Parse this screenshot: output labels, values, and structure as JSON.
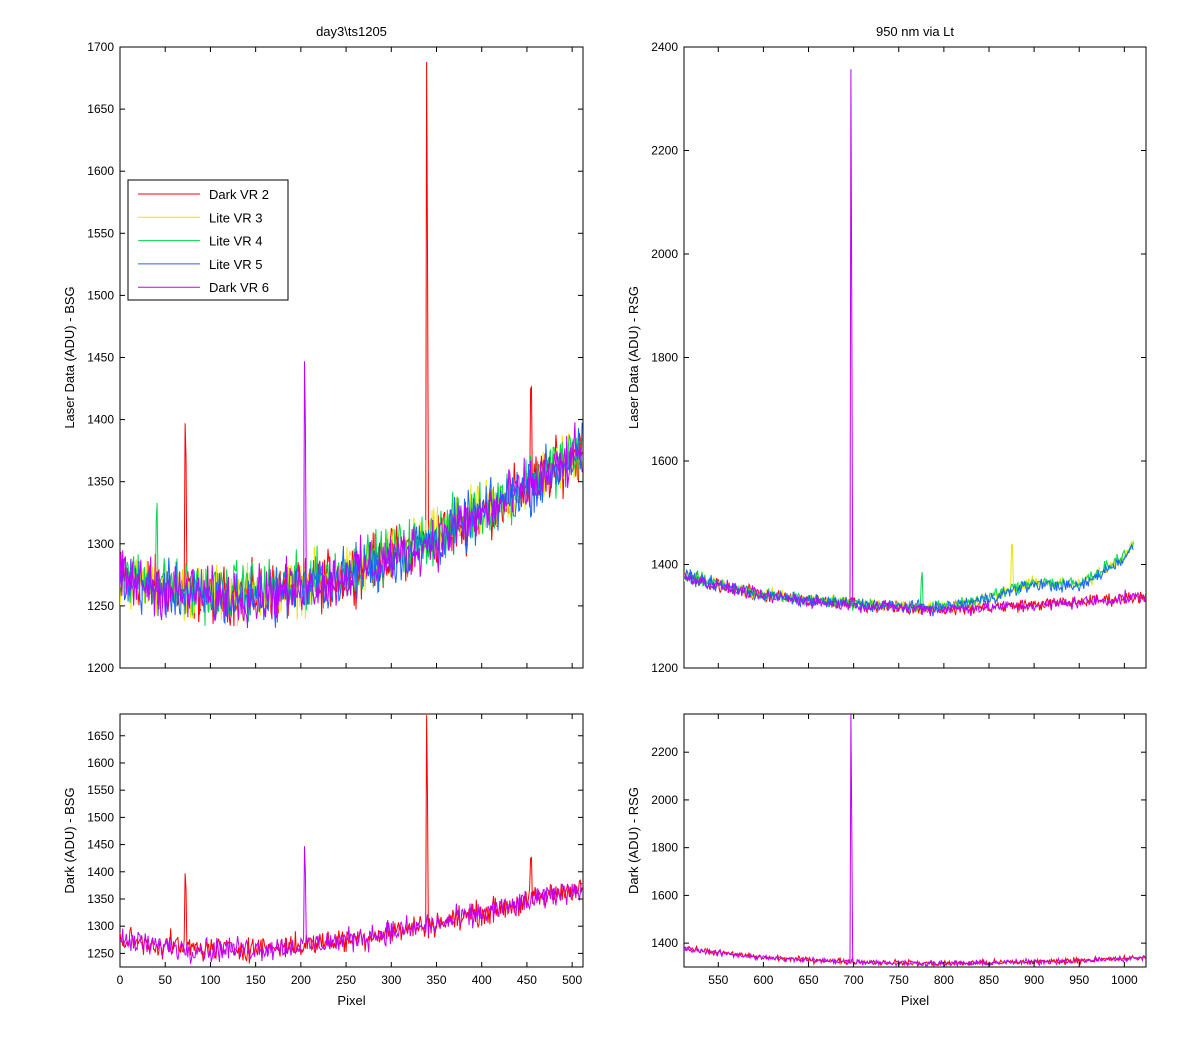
{
  "series_styles": [
    {
      "name": "Dark VR 2",
      "color": "#ff0000"
    },
    {
      "name": "Lite VR 3",
      "color": "#e6e600"
    },
    {
      "name": "Lite VR 4",
      "color": "#00d94c"
    },
    {
      "name": "Lite VR 5",
      "color": "#1a66ff"
    },
    {
      "name": "Dark VR 6",
      "color": "#c000ff"
    }
  ],
  "chart_data": [
    {
      "id": "top-left",
      "type": "line",
      "title": "day3\\ts1205",
      "xlabel": "",
      "ylabel": "Laser Data (ADU) - BSG",
      "xlim": [
        0,
        512
      ],
      "ylim": [
        1200,
        1700
      ],
      "yticks": [
        1200,
        1250,
        1300,
        1350,
        1400,
        1450,
        1500,
        1550,
        1600,
        1650,
        1700
      ],
      "xticks": [
        0,
        50,
        100,
        150,
        200,
        250,
        300,
        350,
        400,
        450,
        500
      ],
      "show_xtick_labels": false,
      "legend": {
        "placement": "upper-left",
        "entries": [
          "Dark VR 2",
          "Lite VR 3",
          "Lite VR 4",
          "Lite VR 5",
          "Dark VR 6"
        ]
      },
      "series": [
        {
          "name": "Dark VR 2",
          "x": [
            0,
            50,
            100,
            150,
            200,
            250,
            300,
            350,
            400,
            450,
            511
          ],
          "values": [
            1275,
            1265,
            1258,
            1260,
            1265,
            1275,
            1290,
            1305,
            1325,
            1345,
            1375
          ],
          "spikes": [
            [
              72,
              1397
            ],
            [
              339,
              1688
            ],
            [
              454,
              1425
            ]
          ]
        },
        {
          "name": "Lite VR 3",
          "x": [
            0,
            50,
            100,
            150,
            200,
            250,
            300,
            350,
            400,
            450,
            511
          ],
          "values": [
            1272,
            1264,
            1258,
            1262,
            1266,
            1277,
            1290,
            1305,
            1325,
            1347,
            1375
          ],
          "spikes": []
        },
        {
          "name": "Lite VR 4",
          "x": [
            0,
            50,
            100,
            150,
            200,
            250,
            300,
            350,
            400,
            450,
            511
          ],
          "values": [
            1275,
            1266,
            1261,
            1264,
            1268,
            1279,
            1292,
            1307,
            1328,
            1350,
            1377
          ],
          "spikes": [
            [
              40,
              1318
            ]
          ]
        },
        {
          "name": "Lite VR 5",
          "x": [
            0,
            50,
            100,
            150,
            200,
            250,
            300,
            350,
            400,
            450,
            511
          ],
          "values": [
            1270,
            1262,
            1255,
            1258,
            1263,
            1274,
            1288,
            1303,
            1323,
            1345,
            1373
          ],
          "spikes": []
        },
        {
          "name": "Dark VR 6",
          "x": [
            0,
            50,
            100,
            150,
            200,
            250,
            300,
            350,
            400,
            450,
            511
          ],
          "values": [
            1272,
            1263,
            1257,
            1259,
            1264,
            1275,
            1289,
            1303,
            1324,
            1344,
            1373
          ],
          "spikes": [
            [
              204,
              1447
            ]
          ]
        }
      ]
    },
    {
      "id": "top-right",
      "type": "line",
      "title": "950 nm via Lt",
      "xlabel": "",
      "ylabel": "Laser Data (ADU) - RSG",
      "xlim": [
        512,
        1024
      ],
      "ylim": [
        1200,
        2400
      ],
      "yticks": [
        1200,
        1400,
        1600,
        1800,
        2000,
        2200,
        2400
      ],
      "xticks": [
        550,
        600,
        650,
        700,
        750,
        800,
        850,
        900,
        950,
        1000
      ],
      "show_xtick_labels": false,
      "legend": null,
      "series": [
        {
          "name": "Dark VR 2",
          "x": [
            512,
            550,
            600,
            650,
            700,
            750,
            800,
            850,
            900,
            950,
            1000,
            1024
          ],
          "values": [
            1378,
            1360,
            1340,
            1330,
            1323,
            1318,
            1315,
            1318,
            1322,
            1328,
            1335,
            1340
          ],
          "spikes": []
        },
        {
          "name": "Lite VR 3",
          "x": [
            512,
            550,
            600,
            650,
            700,
            750,
            800,
            850,
            900,
            950,
            1000,
            1010
          ],
          "values": [
            1380,
            1362,
            1342,
            1332,
            1326,
            1320,
            1318,
            1335,
            1365,
            1360,
            1415,
            1440
          ],
          "spikes": [
            [
              875,
              1440
            ]
          ]
        },
        {
          "name": "Lite VR 4",
          "x": [
            512,
            550,
            600,
            650,
            700,
            750,
            800,
            850,
            900,
            950,
            1000,
            1010
          ],
          "values": [
            1380,
            1362,
            1342,
            1332,
            1326,
            1320,
            1318,
            1337,
            1368,
            1362,
            1418,
            1440
          ],
          "spikes": [
            [
              775,
              1372
            ]
          ]
        },
        {
          "name": "Lite VR 5",
          "x": [
            512,
            550,
            600,
            650,
            700,
            750,
            800,
            850,
            900,
            950,
            1000,
            1010
          ],
          "values": [
            1378,
            1360,
            1340,
            1330,
            1324,
            1318,
            1316,
            1335,
            1362,
            1356,
            1412,
            1435
          ],
          "spikes": []
        },
        {
          "name": "Dark VR 6",
          "x": [
            512,
            550,
            600,
            650,
            700,
            750,
            800,
            850,
            900,
            950,
            1000,
            1024
          ],
          "values": [
            1377,
            1359,
            1339,
            1329,
            1322,
            1317,
            1314,
            1317,
            1321,
            1327,
            1334,
            1339
          ],
          "spikes": [
            [
              697,
              2357
            ]
          ]
        }
      ]
    },
    {
      "id": "bottom-left",
      "type": "line",
      "title": "",
      "xlabel": "Pixel",
      "ylabel": "Dark (ADU) - BSG",
      "xlim": [
        0,
        512
      ],
      "ylim": [
        1225,
        1690
      ],
      "yticks": [
        1250,
        1300,
        1350,
        1400,
        1450,
        1500,
        1550,
        1600,
        1650
      ],
      "xticks": [
        0,
        50,
        100,
        150,
        200,
        250,
        300,
        350,
        400,
        450,
        500
      ],
      "show_xtick_labels": true,
      "legend": null,
      "series": [
        {
          "name": "Dark VR 2",
          "x": [
            0,
            50,
            100,
            150,
            200,
            250,
            300,
            350,
            400,
            450,
            511
          ],
          "values": [
            1275,
            1265,
            1258,
            1260,
            1265,
            1275,
            1290,
            1305,
            1325,
            1345,
            1375
          ],
          "spikes": [
            [
              72,
              1397
            ],
            [
              339,
              1688
            ],
            [
              454,
              1425
            ]
          ]
        },
        {
          "name": "Dark VR 6",
          "x": [
            0,
            50,
            100,
            150,
            200,
            250,
            300,
            350,
            400,
            450,
            511
          ],
          "values": [
            1272,
            1263,
            1257,
            1259,
            1264,
            1275,
            1289,
            1303,
            1324,
            1344,
            1373
          ],
          "spikes": [
            [
              204,
              1447
            ]
          ]
        }
      ]
    },
    {
      "id": "bottom-right",
      "type": "line",
      "title": "",
      "xlabel": "Pixel",
      "ylabel": "Dark (ADU) - RSG",
      "xlim": [
        512,
        1024
      ],
      "ylim": [
        1300,
        2360
      ],
      "yticks": [
        1400,
        1600,
        1800,
        2000,
        2200
      ],
      "xticks": [
        550,
        600,
        650,
        700,
        750,
        800,
        850,
        900,
        950,
        1000
      ],
      "show_xtick_labels": true,
      "legend": null,
      "series": [
        {
          "name": "Dark VR 2",
          "x": [
            512,
            550,
            600,
            650,
            700,
            750,
            800,
            850,
            900,
            950,
            1000,
            1024
          ],
          "values": [
            1378,
            1360,
            1340,
            1330,
            1323,
            1318,
            1315,
            1318,
            1322,
            1328,
            1335,
            1340
          ],
          "spikes": []
        },
        {
          "name": "Dark VR 6",
          "x": [
            512,
            550,
            600,
            650,
            700,
            750,
            800,
            850,
            900,
            950,
            1000,
            1024
          ],
          "values": [
            1377,
            1359,
            1339,
            1329,
            1322,
            1317,
            1314,
            1317,
            1321,
            1327,
            1334,
            1339
          ],
          "spikes": [
            [
              697,
              2357
            ]
          ]
        }
      ]
    }
  ]
}
